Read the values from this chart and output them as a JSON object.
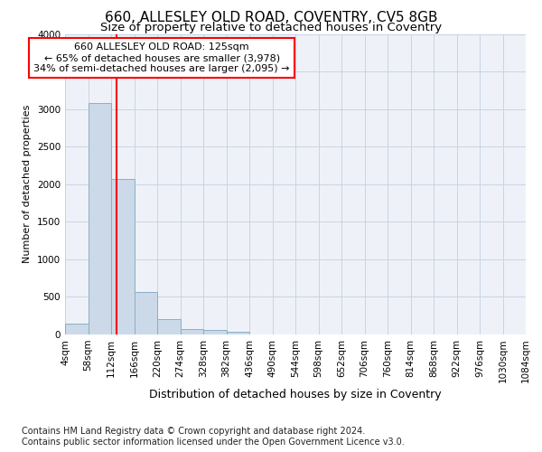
{
  "title": "660, ALLESLEY OLD ROAD, COVENTRY, CV5 8GB",
  "subtitle": "Size of property relative to detached houses in Coventry",
  "xlabel": "Distribution of detached houses by size in Coventry",
  "ylabel": "Number of detached properties",
  "bin_edges": [
    4,
    58,
    112,
    166,
    220,
    274,
    328,
    382,
    436,
    490,
    544,
    598,
    652,
    706,
    760,
    814,
    868,
    922,
    976,
    1030,
    1084
  ],
  "bin_values": [
    150,
    3075,
    2075,
    570,
    200,
    75,
    55,
    40,
    5,
    0,
    0,
    0,
    0,
    0,
    0,
    0,
    0,
    0,
    0,
    0
  ],
  "bar_color": "#ccd9e8",
  "bar_edge_color": "#8aafc8",
  "red_line_x": 125,
  "ylim": [
    0,
    4000
  ],
  "yticks": [
    0,
    500,
    1000,
    1500,
    2000,
    2500,
    3000,
    3500,
    4000
  ],
  "annotation_text": "660 ALLESLEY OLD ROAD: 125sqm\n← 65% of detached houses are smaller (3,978)\n34% of semi-detached houses are larger (2,095) →",
  "annotation_box_color": "white",
  "annotation_box_edge": "red",
  "footer_line1": "Contains HM Land Registry data © Crown copyright and database right 2024.",
  "footer_line2": "Contains public sector information licensed under the Open Government Licence v3.0.",
  "grid_color": "#c8d4e4",
  "background_color": "#eef2f8",
  "tick_labels": [
    "4sqm",
    "58sqm",
    "112sqm",
    "166sqm",
    "220sqm",
    "274sqm",
    "328sqm",
    "382sqm",
    "436sqm",
    "490sqm",
    "544sqm",
    "598sqm",
    "652sqm",
    "706sqm",
    "760sqm",
    "814sqm",
    "868sqm",
    "922sqm",
    "976sqm",
    "1030sqm",
    "1084sqm"
  ],
  "title_fontsize": 11,
  "subtitle_fontsize": 9.5,
  "ylabel_fontsize": 8,
  "xlabel_fontsize": 9,
  "tick_fontsize": 7.5,
  "annot_fontsize": 8,
  "footer_fontsize": 7
}
